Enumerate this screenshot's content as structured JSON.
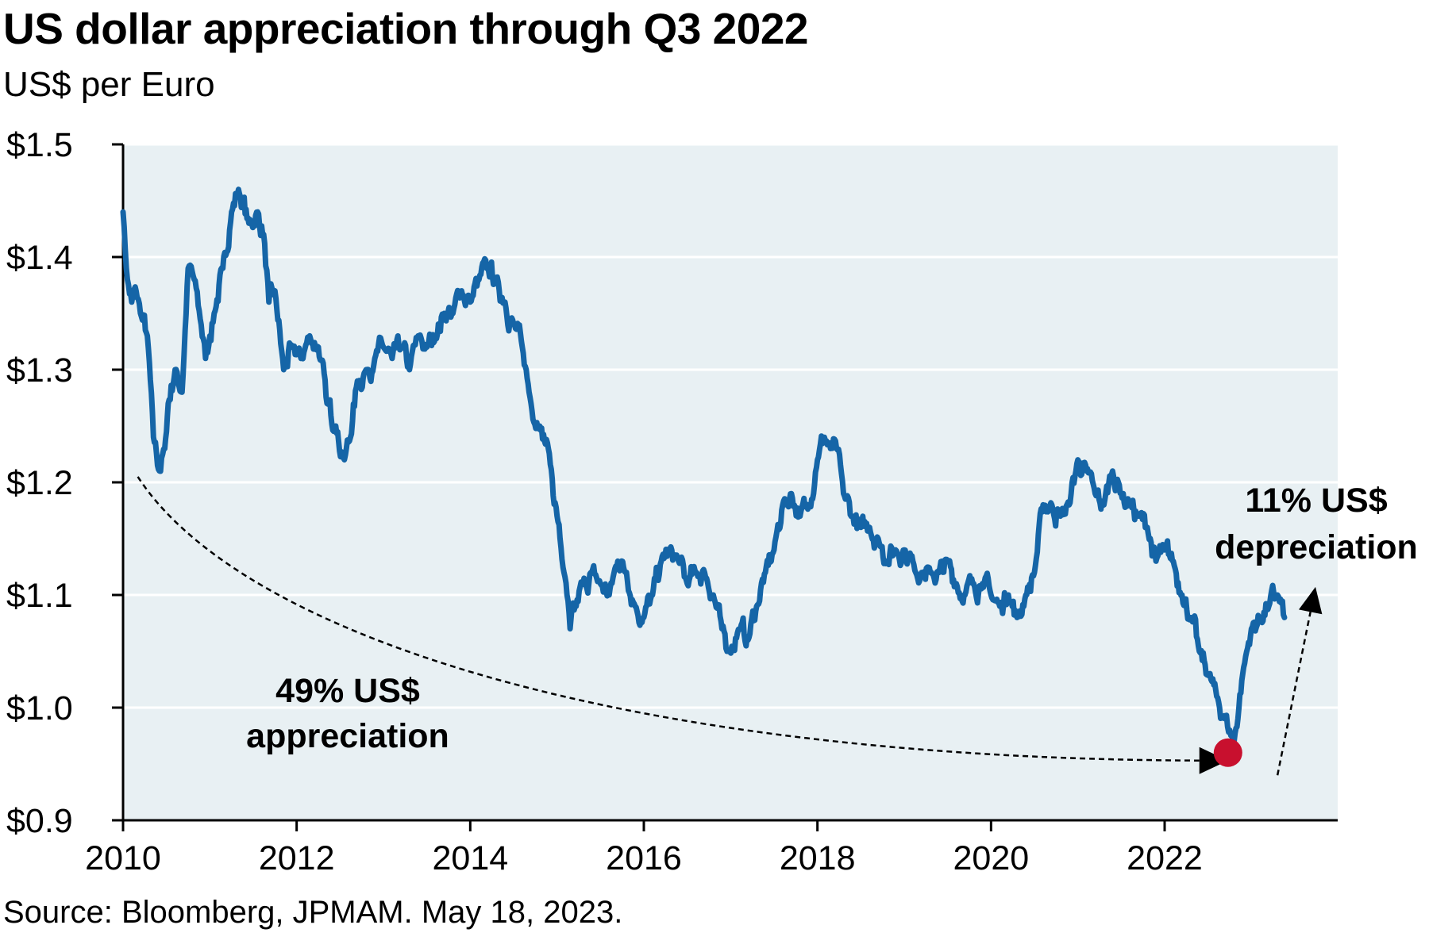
{
  "chart_data": {
    "type": "line",
    "title": "US dollar appreciation through Q3 2022",
    "subtitle": "US$ per Euro",
    "source": "Source: Bloomberg, JPMAM. May 18, 2023.",
    "xlim": [
      2010,
      2024
    ],
    "ylim": [
      0.9,
      1.5
    ],
    "x_ticks": [
      2010,
      2012,
      2014,
      2016,
      2018,
      2020,
      2022
    ],
    "x_tick_labels": [
      "2010",
      "2012",
      "2014",
      "2016",
      "2018",
      "2020",
      "2022"
    ],
    "y_ticks": [
      0.9,
      1.0,
      1.1,
      1.2,
      1.3,
      1.4,
      1.5
    ],
    "y_tick_labels": [
      "$0.9",
      "$1.0",
      "$1.1",
      "$1.2",
      "$1.3",
      "$1.4",
      "$1.5"
    ],
    "grid": "horizontal",
    "background_color": "#e8f0f3",
    "line_color": "#1565a7",
    "marker_color": "#c8102e",
    "series": [
      {
        "x": [
          2010.0,
          2010.05,
          2010.1,
          2010.15,
          2010.2,
          2010.28,
          2010.35,
          2010.42,
          2010.48,
          2010.52,
          2010.6,
          2010.68,
          2010.75,
          2010.82,
          2010.9,
          2010.95,
          2011.0,
          2011.05,
          2011.15,
          2011.25,
          2011.33,
          2011.45,
          2011.55,
          2011.62,
          2011.68,
          2011.75,
          2011.85,
          2011.95,
          2012.05,
          2012.15,
          2012.25,
          2012.35,
          2012.45,
          2012.55,
          2012.62,
          2012.7,
          2012.8,
          2012.9,
          2013.0,
          2013.1,
          2013.2,
          2013.3,
          2013.4,
          2013.5,
          2013.6,
          2013.7,
          2013.8,
          2013.9,
          2014.0,
          2014.1,
          2014.2,
          2014.3,
          2014.4,
          2014.5,
          2014.6,
          2014.7,
          2014.8,
          2014.9,
          2015.0,
          2015.08,
          2015.15,
          2015.22,
          2015.3,
          2015.4,
          2015.5,
          2015.6,
          2015.7,
          2015.8,
          2015.9,
          2016.0,
          2016.1,
          2016.2,
          2016.3,
          2016.4,
          2016.5,
          2016.6,
          2016.7,
          2016.8,
          2016.9,
          2016.97,
          2017.1,
          2017.2,
          2017.3,
          2017.4,
          2017.5,
          2017.6,
          2017.7,
          2017.8,
          2017.9,
          2018.0,
          2018.08,
          2018.15,
          2018.22,
          2018.3,
          2018.4,
          2018.5,
          2018.6,
          2018.7,
          2018.8,
          2018.9,
          2019.0,
          2019.1,
          2019.2,
          2019.3,
          2019.4,
          2019.5,
          2019.6,
          2019.7,
          2019.8,
          2019.9,
          2020.0,
          2020.1,
          2020.2,
          2020.3,
          2020.4,
          2020.5,
          2020.6,
          2020.7,
          2020.8,
          2020.9,
          2021.0,
          2021.1,
          2021.2,
          2021.3,
          2021.4,
          2021.5,
          2021.6,
          2021.7,
          2021.8,
          2021.9,
          2022.0,
          2022.1,
          2022.2,
          2022.3,
          2022.4,
          2022.5,
          2022.6,
          2022.7,
          2022.75,
          2022.8,
          2022.9,
          2023.0,
          2023.1,
          2023.2,
          2023.3,
          2023.38
        ],
        "values": [
          1.44,
          1.38,
          1.36,
          1.37,
          1.35,
          1.33,
          1.24,
          1.21,
          1.23,
          1.27,
          1.3,
          1.28,
          1.39,
          1.38,
          1.34,
          1.31,
          1.33,
          1.35,
          1.39,
          1.44,
          1.46,
          1.43,
          1.44,
          1.42,
          1.36,
          1.37,
          1.3,
          1.32,
          1.31,
          1.33,
          1.32,
          1.27,
          1.25,
          1.22,
          1.24,
          1.29,
          1.3,
          1.31,
          1.32,
          1.31,
          1.32,
          1.3,
          1.33,
          1.32,
          1.33,
          1.35,
          1.35,
          1.37,
          1.36,
          1.38,
          1.39,
          1.38,
          1.36,
          1.34,
          1.32,
          1.27,
          1.25,
          1.23,
          1.17,
          1.12,
          1.07,
          1.09,
          1.11,
          1.12,
          1.11,
          1.1,
          1.13,
          1.12,
          1.09,
          1.08,
          1.1,
          1.13,
          1.14,
          1.13,
          1.11,
          1.12,
          1.12,
          1.1,
          1.07,
          1.05,
          1.07,
          1.06,
          1.09,
          1.12,
          1.14,
          1.18,
          1.19,
          1.17,
          1.18,
          1.22,
          1.24,
          1.23,
          1.23,
          1.19,
          1.17,
          1.16,
          1.16,
          1.15,
          1.13,
          1.14,
          1.14,
          1.13,
          1.12,
          1.12,
          1.12,
          1.13,
          1.11,
          1.1,
          1.11,
          1.11,
          1.1,
          1.09,
          1.1,
          1.08,
          1.1,
          1.12,
          1.18,
          1.18,
          1.17,
          1.18,
          1.22,
          1.21,
          1.19,
          1.18,
          1.21,
          1.19,
          1.18,
          1.17,
          1.16,
          1.13,
          1.14,
          1.13,
          1.1,
          1.08,
          1.05,
          1.03,
          1.01,
          0.99,
          0.98,
          0.97,
          1.03,
          1.07,
          1.08,
          1.09,
          1.1,
          1.08
        ]
      }
    ],
    "annotations": {
      "appreciation_line1": "49% US$",
      "appreciation_line2": "appreciation",
      "depreciation_line1": "11% US$",
      "depreciation_line2": "depreciation"
    },
    "marker_point": {
      "x": 2022.73,
      "y": 0.96
    }
  }
}
